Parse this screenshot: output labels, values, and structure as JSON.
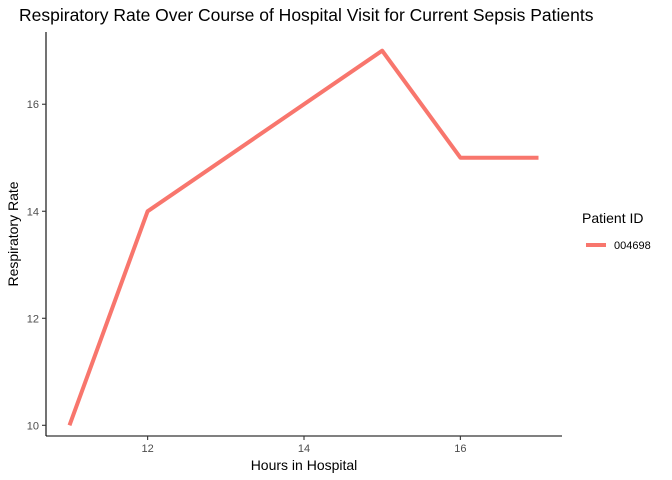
{
  "chart_data": {
    "type": "line",
    "title": "Respiratory Rate Over Course of Hospital Visit for Current Sepsis Patients",
    "xlabel": "Hours in Hospital",
    "ylabel": "Respiratory Rate",
    "xlim": [
      10.7,
      17.3
    ],
    "ylim": [
      9.8,
      17.35
    ],
    "x_ticks": [
      12,
      14,
      16
    ],
    "y_ticks": [
      10,
      12,
      14,
      16
    ],
    "grid": false,
    "legend": {
      "title": "Patient ID",
      "position": "right"
    },
    "series": [
      {
        "name": "004698",
        "color": "#F8766D",
        "x": [
          11,
          12,
          15,
          16,
          17
        ],
        "y": [
          10,
          14,
          17,
          15,
          15
        ]
      }
    ]
  }
}
